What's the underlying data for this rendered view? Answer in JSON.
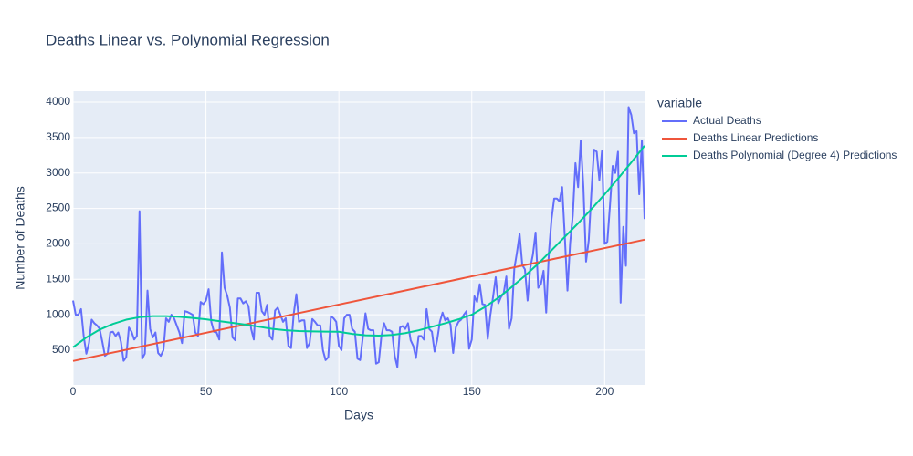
{
  "chart_data": {
    "type": "line",
    "title": "Deaths Linear vs. Polynomial Regression",
    "x_label": "Days",
    "y_label": "Number of Deaths",
    "legend_title": "variable",
    "legend_position": "right",
    "xlim": [
      0,
      215
    ],
    "ylim": [
      10,
      4155
    ],
    "xticks": [
      0,
      50,
      100,
      150,
      200
    ],
    "yticks": [
      500,
      1000,
      1500,
      2000,
      2500,
      3000,
      3500,
      4000
    ],
    "grid": true,
    "series": [
      {
        "name": "Actual Deaths",
        "color": "#636efa",
        "x": [
          0,
          1,
          2,
          3,
          4,
          5,
          6,
          7,
          8,
          9,
          10,
          11,
          12,
          13,
          14,
          15,
          16,
          17,
          18,
          19,
          20,
          21,
          22,
          23,
          24,
          25,
          26,
          27,
          28,
          29,
          30,
          31,
          32,
          33,
          34,
          35,
          36,
          37,
          38,
          39,
          40,
          41,
          42,
          43,
          44,
          45,
          46,
          47,
          48,
          49,
          50,
          51,
          52,
          53,
          54,
          55,
          56,
          57,
          58,
          59,
          60,
          61,
          62,
          63,
          64,
          65,
          66,
          67,
          68,
          69,
          70,
          71,
          72,
          73,
          74,
          75,
          76,
          77,
          78,
          79,
          80,
          81,
          82,
          83,
          84,
          85,
          86,
          87,
          88,
          89,
          90,
          91,
          92,
          93,
          94,
          95,
          96,
          97,
          98,
          99,
          100,
          101,
          102,
          103,
          104,
          105,
          106,
          107,
          108,
          109,
          110,
          111,
          112,
          113,
          114,
          115,
          116,
          117,
          118,
          119,
          120,
          121,
          122,
          123,
          124,
          125,
          126,
          127,
          128,
          129,
          130,
          131,
          132,
          133,
          134,
          135,
          136,
          137,
          138,
          139,
          140,
          141,
          142,
          143,
          144,
          145,
          146,
          147,
          148,
          149,
          150,
          151,
          152,
          153,
          154,
          155,
          156,
          157,
          158,
          159,
          160,
          161,
          162,
          163,
          164,
          165,
          166,
          167,
          168,
          169,
          170,
          171,
          172,
          173,
          174,
          175,
          176,
          177,
          178,
          179,
          180,
          181,
          182,
          183,
          184,
          185,
          186,
          187,
          188,
          189,
          190,
          191,
          192,
          193,
          194,
          195,
          196,
          197,
          198,
          199,
          200,
          201,
          202,
          203,
          204,
          205,
          206,
          207,
          208,
          209,
          210,
          211,
          212,
          213,
          214,
          215
        ],
        "values": [
          1200,
          1000,
          1000,
          1080,
          700,
          450,
          600,
          930,
          880,
          850,
          800,
          620,
          420,
          450,
          750,
          760,
          700,
          750,
          620,
          350,
          400,
          820,
          760,
          650,
          700,
          2460,
          380,
          450,
          1340,
          800,
          680,
          750,
          460,
          420,
          500,
          950,
          900,
          1000,
          950,
          850,
          750,
          600,
          1050,
          1040,
          1020,
          1000,
          750,
          700,
          1180,
          1150,
          1200,
          1360,
          900,
          760,
          750,
          650,
          1880,
          1380,
          1270,
          1100,
          680,
          640,
          1230,
          1230,
          1160,
          1190,
          1120,
          800,
          650,
          1310,
          1310,
          1050,
          1000,
          1140,
          700,
          650,
          1060,
          1100,
          1000,
          900,
          950,
          560,
          530,
          1010,
          1290,
          900,
          920,
          920,
          530,
          600,
          940,
          900,
          850,
          850,
          500,
          360,
          400,
          980,
          950,
          900,
          560,
          500,
          950,
          1000,
          1000,
          800,
          760,
          380,
          360,
          680,
          1020,
          800,
          780,
          780,
          310,
          330,
          700,
          880,
          780,
          780,
          760,
          420,
          260,
          820,
          840,
          800,
          880,
          640,
          560,
          390,
          700,
          700,
          650,
          1080,
          800,
          760,
          480,
          650,
          900,
          1030,
          920,
          950,
          860,
          460,
          820,
          900,
          930,
          1000,
          1050,
          520,
          650,
          1260,
          1180,
          1430,
          1150,
          1140,
          660,
          1000,
          1250,
          1530,
          1160,
          1250,
          1300,
          1540,
          800,
          950,
          1650,
          1880,
          2140,
          1700,
          1640,
          1200,
          1660,
          1850,
          2160,
          1380,
          1430,
          1620,
          1030,
          1870,
          2350,
          2640,
          2640,
          2600,
          2800,
          2100,
          1340,
          2010,
          2400,
          3140,
          2800,
          3460,
          2800,
          1750,
          2050,
          2730,
          3330,
          3300,
          2900,
          3310,
          2000,
          2030,
          2550,
          3100,
          3000,
          3300,
          1170,
          2240,
          1690,
          3930,
          3820,
          3560,
          3590,
          2700,
          3460,
          2350
        ]
      },
      {
        "name": "Deaths Linear Predictions",
        "color": "#EF553B",
        "x": [
          0,
          215
        ],
        "values": [
          347,
          2059
        ]
      },
      {
        "name": "Deaths Polynomial (Degree 4) Predictions",
        "color": "#00cc96",
        "x": [
          0,
          5,
          10,
          15,
          20,
          25,
          30,
          35,
          40,
          45,
          50,
          55,
          60,
          65,
          70,
          75,
          80,
          85,
          90,
          95,
          100,
          105,
          110,
          115,
          120,
          125,
          130,
          135,
          140,
          145,
          150,
          155,
          160,
          165,
          170,
          175,
          180,
          185,
          190,
          195,
          200,
          205,
          210,
          215
        ],
        "values": [
          540,
          680,
          790,
          870,
          930,
          965,
          980,
          980,
          970,
          955,
          935,
          910,
          885,
          860,
          830,
          800,
          780,
          770,
          765,
          762,
          760,
          730,
          710,
          705,
          715,
          740,
          780,
          830,
          880,
          935,
          1000,
          1110,
          1240,
          1390,
          1550,
          1720,
          1910,
          2100,
          2290,
          2490,
          2700,
          2920,
          3150,
          3385
        ]
      }
    ]
  }
}
